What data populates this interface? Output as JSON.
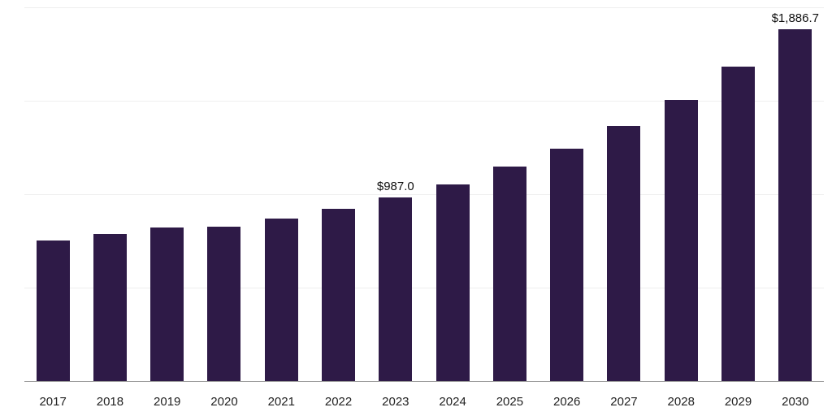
{
  "chart_data": {
    "type": "bar",
    "categories": [
      "2017",
      "2018",
      "2019",
      "2020",
      "2021",
      "2022",
      "2023",
      "2024",
      "2025",
      "2026",
      "2027",
      "2028",
      "2029",
      "2030"
    ],
    "values": [
      755,
      790,
      825,
      832,
      875,
      927,
      987,
      1058,
      1152,
      1250,
      1370,
      1510,
      1686,
      1886.7
    ],
    "ylim": [
      0,
      2000
    ],
    "gridline_interval": 500,
    "grid": true,
    "legend": "none",
    "annotations": [
      {
        "category": "2023",
        "label": "$987.0"
      },
      {
        "category": "2030",
        "label": "$1,886.7"
      }
    ]
  },
  "colors": {
    "bar": "#2e1a47",
    "gridline": "#efefef",
    "axis_line": "#9b9b9b",
    "label_text": "#111111",
    "tick_text": "#222222"
  }
}
